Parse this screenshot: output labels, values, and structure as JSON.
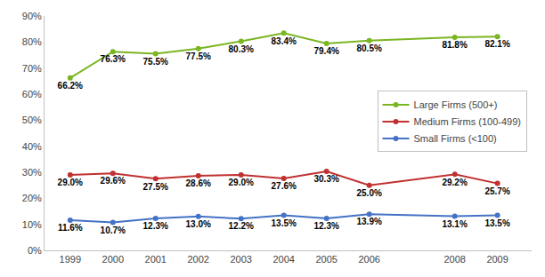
{
  "chart_data": {
    "type": "line",
    "x": [
      1999,
      2000,
      2001,
      2002,
      2003,
      2004,
      2005,
      2006,
      2008,
      2009
    ],
    "series": [
      {
        "name": "Large Firms (500+)",
        "color": "#7ab522",
        "marker": "circle",
        "line_style": "solid",
        "values": [
          66.2,
          76.3,
          75.5,
          77.5,
          80.3,
          83.4,
          79.4,
          80.5,
          81.8,
          82.1
        ],
        "value_labels": [
          "66.2%",
          "76.3%",
          "75.5%",
          "77.5%",
          "80.3%",
          "83.4%",
          "79.4%",
          "80.5%",
          "81.8%",
          "82.1%"
        ]
      },
      {
        "name": "Medium Firms (100-499)",
        "color": "#c03030",
        "marker": "circle",
        "line_style": "solid",
        "values": [
          29.0,
          29.6,
          27.5,
          28.6,
          29.0,
          27.6,
          30.3,
          25.0,
          29.2,
          25.7
        ],
        "value_labels": [
          "29.0%",
          "29.6%",
          "27.5%",
          "28.6%",
          "29.0%",
          "27.6%",
          "30.3%",
          "25.0%",
          "29.2%",
          "25.7%"
        ]
      },
      {
        "name": "Small Firms (<100)",
        "color": "#4472c4",
        "marker": "circle",
        "line_style": "solid",
        "values": [
          11.6,
          10.7,
          12.3,
          13.0,
          12.2,
          13.5,
          12.3,
          13.9,
          13.1,
          13.5
        ],
        "value_labels": [
          "11.6%",
          "10.7%",
          "12.3%",
          "13.0%",
          "12.2%",
          "13.5%",
          "12.3%",
          "13.9%",
          "13.1%",
          "13.5%"
        ]
      }
    ],
    "xlim": [
      1998.4,
      2009.8
    ],
    "xticks": [
      1999,
      2000,
      2001,
      2002,
      2003,
      2004,
      2005,
      2006,
      2008,
      2009
    ],
    "ylim": [
      0,
      90
    ],
    "yticks": [
      {
        "value": 0,
        "label": "0%"
      },
      {
        "value": 10,
        "label": "10%"
      },
      {
        "value": 20,
        "label": "20%"
      },
      {
        "value": 30,
        "label": "30%"
      },
      {
        "value": 40,
        "label": "40%"
      },
      {
        "value": 50,
        "label": "50%"
      },
      {
        "value": 60,
        "label": "60%"
      },
      {
        "value": 70,
        "label": "70%"
      },
      {
        "value": 80,
        "label": "80%"
      },
      {
        "value": 90,
        "label": "90%"
      }
    ],
    "grid": false,
    "legend": "right",
    "data_labels": true
  }
}
